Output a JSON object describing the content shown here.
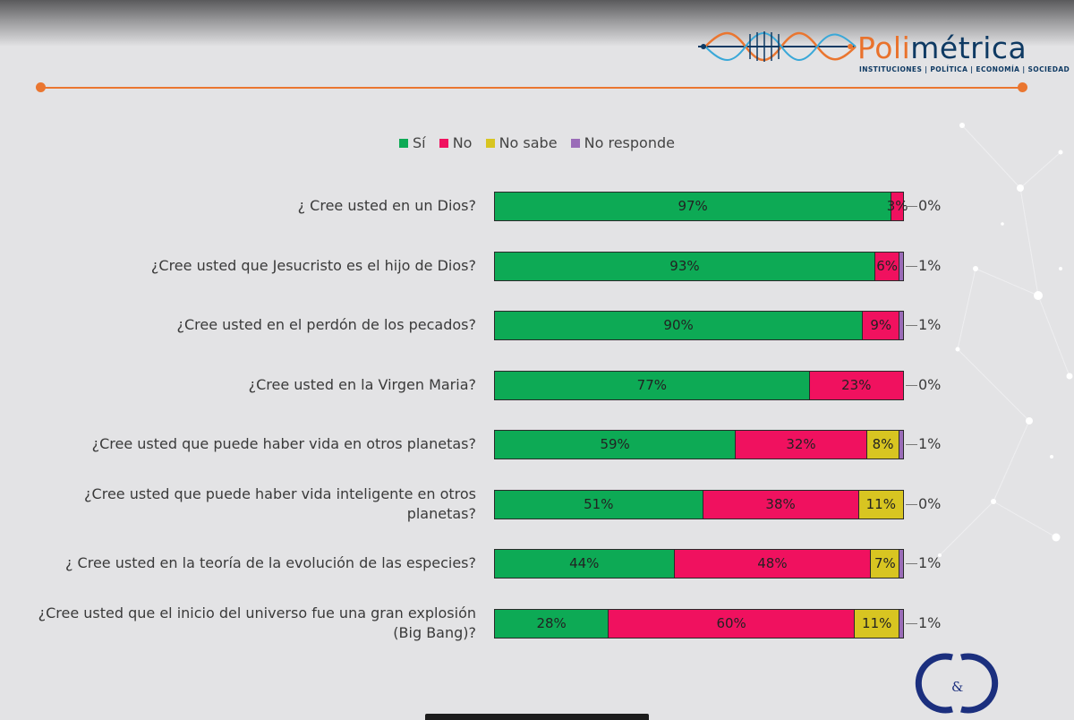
{
  "brand": {
    "name_accent": "Poli",
    "name_main": "métrica",
    "tagline": "INSTITUCIONES | POLÍTICA | ECONOMÍA | SOCIEDAD"
  },
  "colors": {
    "si": "#0daa55",
    "no": "#f0115f",
    "no_sabe": "#d8c521",
    "no_responde": "#9a6cb8",
    "accent": "#ea7630",
    "brand_dark": "#0f3a63"
  },
  "chart_data": {
    "type": "bar",
    "orientation": "horizontal",
    "stacked": true,
    "legend_position": "top",
    "categories": [
      "¿ Cree usted en un Dios?",
      "¿Cree usted que Jesucristo es el hijo de Dios?",
      "¿Cree usted en el perdón de los pecados?",
      "¿Cree usted en la Virgen Maria?",
      "¿Cree usted que puede haber vida en otros planetas?",
      "¿Cree usted que  puede haber  vida inteligente en otros planetas?",
      "¿ Cree usted en la teoría de la evolución de las especies?",
      "¿Cree usted que el inicio del universo fue una gran explosión (Big Bang)?"
    ],
    "series": [
      {
        "name": "Sí",
        "color": "#0daa55",
        "values": [
          97,
          93,
          90,
          77,
          59,
          51,
          44,
          28
        ],
        "labels": [
          "97%",
          "93%",
          "90%",
          "77%",
          "59%",
          "51%",
          "44%",
          "28%"
        ]
      },
      {
        "name": "No",
        "color": "#f0115f",
        "values": [
          3,
          6,
          9,
          23,
          32,
          38,
          48,
          60
        ],
        "labels": [
          "3%",
          "6%",
          "9%",
          "23%",
          "32%",
          "38%",
          "48%",
          "60%"
        ]
      },
      {
        "name": "No sabe",
        "color": "#d8c521",
        "values": [
          0,
          0,
          0,
          0,
          8,
          11,
          7,
          11
        ],
        "labels": [
          "",
          "",
          "",
          "",
          "8%",
          "11%",
          "7%",
          "11%"
        ]
      },
      {
        "name": "No responde",
        "color": "#9a6cb8",
        "values": [
          0,
          1,
          1,
          0,
          1,
          0,
          1,
          1
        ],
        "labels": [
          "0%",
          "1%",
          "1%",
          "0%",
          "1%",
          "0%",
          "1%",
          "1%"
        ]
      }
    ]
  }
}
